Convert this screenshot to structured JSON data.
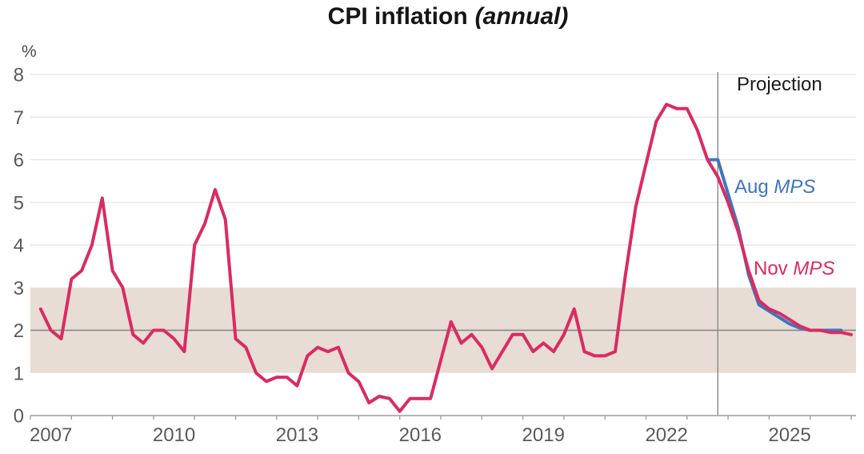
{
  "title": {
    "main": "CPI inflation",
    "suffix": "(annual)"
  },
  "y_axis": {
    "unit": "%",
    "ticks": [
      8,
      7,
      6,
      5,
      4,
      3,
      2,
      1,
      0
    ],
    "min": 0,
    "max": 8
  },
  "x_axis": {
    "first_tick": 2007,
    "last_tick": 2027,
    "labels": [
      2007,
      2010,
      2013,
      2016,
      2019,
      2022,
      2025
    ]
  },
  "annotations": {
    "projection": "Projection",
    "aug_prefix": "Aug ",
    "aug_italic": "MPS",
    "nov_prefix": "Nov ",
    "nov_italic": "MPS"
  },
  "target_band": {
    "low": 1,
    "high": 3,
    "color": "#e7ddd4"
  },
  "reference_line_value": 2,
  "projection_start": 2023.75,
  "colors": {
    "nov_crimson": "#da2b62",
    "aug_blue": "#3e76bf",
    "band": "#e7ddd4",
    "gridline": "#e4e4e4",
    "reference_line": "#8f8c89",
    "projection_line": "#8a8a8a",
    "axis": "#9e9e9e",
    "tick_label": "#5a5a5a"
  },
  "chart_data": {
    "type": "line",
    "title": "CPI inflation (annual)",
    "xlabel": "",
    "ylabel": "%",
    "ylim": [
      0,
      8
    ],
    "xlim": [
      2007,
      2027.35
    ],
    "grid": "horizontal",
    "legend_position": "inline-right",
    "x_step": 0.25,
    "x_unit": "quarter-end-decimal-year",
    "band": {
      "low": 1,
      "high": 3
    },
    "projection_divider_x": 2023.75,
    "series": [
      {
        "name": "Nov MPS",
        "color": "#da2b62",
        "x_start": 2007.25,
        "actual_through": 2023.75,
        "values": [
          2.5,
          2.0,
          1.8,
          3.2,
          3.4,
          4.0,
          5.1,
          3.4,
          3.0,
          1.9,
          1.7,
          2.0,
          2.0,
          1.8,
          1.5,
          4.0,
          4.5,
          5.3,
          4.6,
          1.8,
          1.6,
          1.0,
          0.8,
          0.9,
          0.9,
          0.7,
          1.4,
          1.6,
          1.5,
          1.6,
          1.0,
          0.8,
          0.3,
          0.45,
          0.4,
          0.1,
          0.4,
          0.4,
          0.4,
          1.3,
          2.2,
          1.7,
          1.9,
          1.6,
          1.1,
          1.5,
          1.9,
          1.9,
          1.5,
          1.7,
          1.5,
          1.9,
          2.5,
          1.5,
          1.4,
          1.4,
          1.5,
          3.3,
          4.9,
          5.9,
          6.9,
          7.3,
          7.2,
          7.2,
          6.7,
          6.0,
          5.6,
          5.0,
          4.3,
          3.4,
          2.7,
          2.5,
          2.4,
          2.25,
          2.1,
          2.0,
          2.0,
          1.95,
          1.95,
          1.9
        ]
      },
      {
        "name": "Aug MPS",
        "color": "#3e76bf",
        "x_start": 2023.5,
        "actual_through": 2023.5,
        "values": [
          6.0,
          6.0,
          5.2,
          4.4,
          3.3,
          2.6,
          2.45,
          2.3,
          2.15,
          2.05,
          2.0,
          2.0,
          2.0,
          2.0
        ]
      }
    ]
  }
}
